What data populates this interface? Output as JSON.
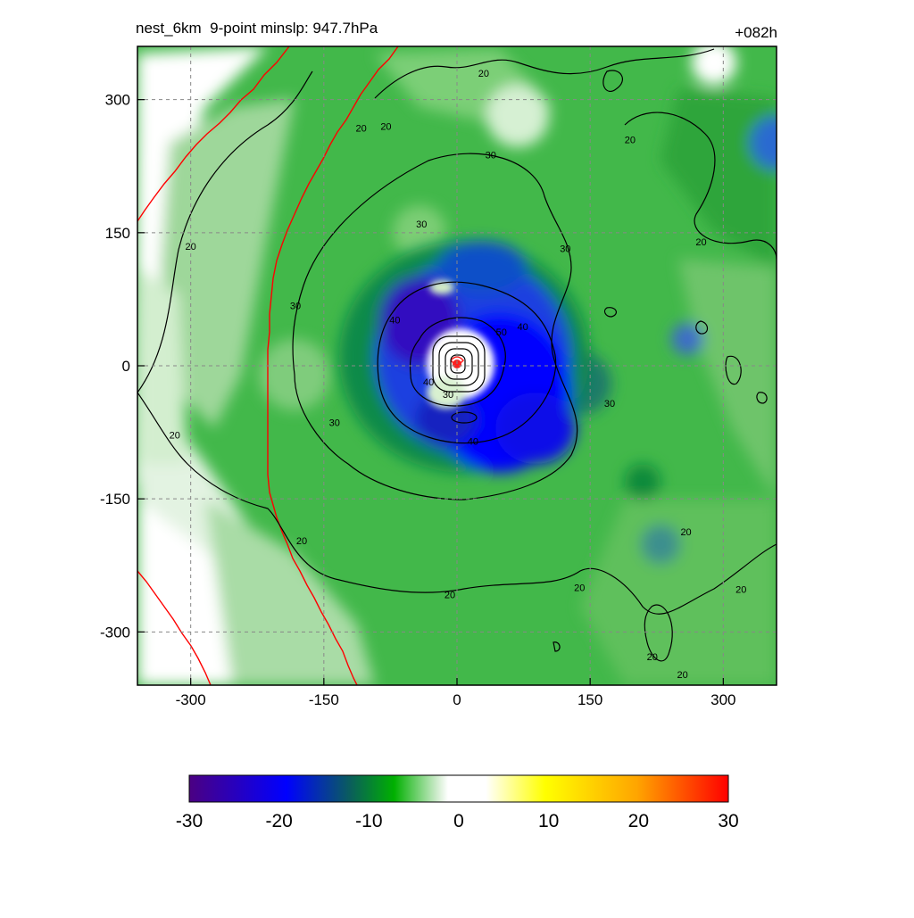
{
  "header": {
    "left_title": "nest_6km  9-point minslp: 947.7hPa",
    "right_title": "+082h"
  },
  "chart_data": {
    "type": "heatmap",
    "title": "",
    "xlabel": "",
    "ylabel": "",
    "xlim": [
      -360,
      360
    ],
    "ylim": [
      -360,
      360
    ],
    "x_ticks": [
      -300,
      -150,
      0,
      150,
      300
    ],
    "y_ticks": [
      -300,
      -150,
      0,
      150,
      300
    ],
    "x_tick_labels": [
      "-300",
      "-150",
      "0",
      "150",
      "300"
    ],
    "y_tick_labels": [
      "-300",
      "-150",
      "0",
      "150",
      "300"
    ],
    "grid": true,
    "grid_style": "dashed gray",
    "colorbar": {
      "range": [
        -30,
        30
      ],
      "tick_values": [
        -30,
        -20,
        -10,
        0,
        10,
        20,
        30
      ],
      "tick_labels": [
        "-30",
        "-20",
        "-10",
        "0",
        "10",
        "20",
        "30"
      ],
      "colors": [
        "#4b0082",
        "#0000ff",
        "#0b6e4f",
        "#00b000",
        "#cdebcb",
        "#ffffff",
        "#ffff00",
        "#ffa500",
        "#ff0000"
      ]
    },
    "contour_levels": [
      20,
      30,
      40,
      50
    ],
    "contour_labels": [
      {
        "text": "20",
        "x": 30,
        "y": 330
      },
      {
        "text": "20",
        "x": -80,
        "y": 270
      },
      {
        "text": "20",
        "x": -108,
        "y": 268
      },
      {
        "text": "20",
        "x": 195,
        "y": 255
      },
      {
        "text": "20",
        "x": 275,
        "y": 140
      },
      {
        "text": "20",
        "x": -300,
        "y": 135
      },
      {
        "text": "20",
        "x": -318,
        "y": -78
      },
      {
        "text": "20",
        "x": -175,
        "y": -197
      },
      {
        "text": "20",
        "x": -8,
        "y": -258
      },
      {
        "text": "20",
        "x": 138,
        "y": -250
      },
      {
        "text": "20",
        "x": 220,
        "y": -328
      },
      {
        "text": "20",
        "x": 258,
        "y": -187
      },
      {
        "text": "20",
        "x": 320,
        "y": -252
      },
      {
        "text": "20",
        "x": 254,
        "y": -348
      },
      {
        "text": "30",
        "x": 38,
        "y": 238
      },
      {
        "text": "30",
        "x": -40,
        "y": 160
      },
      {
        "text": "30",
        "x": 122,
        "y": 132
      },
      {
        "text": "30",
        "x": -182,
        "y": 68
      },
      {
        "text": "30",
        "x": 172,
        "y": -42
      },
      {
        "text": "30",
        "x": -138,
        "y": -64
      },
      {
        "text": "30",
        "x": -10,
        "y": -32
      },
      {
        "text": "40",
        "x": -70,
        "y": 52
      },
      {
        "text": "40",
        "x": 74,
        "y": 44
      },
      {
        "text": "40",
        "x": -32,
        "y": -18
      },
      {
        "text": "40",
        "x": 18,
        "y": -85
      },
      {
        "text": "50",
        "x": 50,
        "y": 38
      }
    ],
    "boundary_line_color": "#ff0000",
    "center_marker_color": "#ff0000"
  }
}
